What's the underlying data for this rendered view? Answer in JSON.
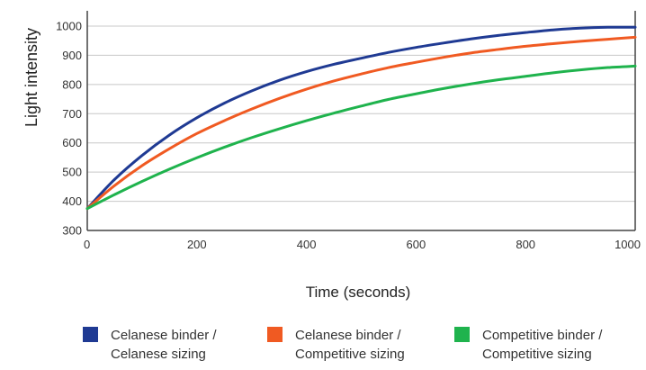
{
  "chart_data": {
    "type": "line",
    "title": "",
    "xlabel": "Time (seconds)",
    "ylabel": "Light intensity",
    "xlim": [
      0,
      1000
    ],
    "ylim": [
      300,
      1000
    ],
    "xticks": [
      0,
      200,
      400,
      600,
      800,
      1000
    ],
    "yticks": [
      300,
      400,
      500,
      600,
      700,
      800,
      900,
      1000
    ],
    "grid": "horizontal",
    "legend_position": "bottom",
    "x": [
      0,
      50,
      100,
      150,
      200,
      250,
      300,
      350,
      400,
      450,
      500,
      550,
      600,
      650,
      700,
      750,
      800,
      850,
      900,
      950,
      1000
    ],
    "series": [
      {
        "name_lines": [
          "Celanese binder /",
          "Celanese sizing"
        ],
        "color": "#1f3a93",
        "values": [
          375,
          475,
          557,
          627,
          686,
          736,
          778,
          814,
          844,
          869,
          890,
          910,
          927,
          942,
          956,
          968,
          978,
          987,
          993,
          996,
          996
        ]
      },
      {
        "name_lines": [
          "Celanese binder /",
          "Competitive sizing"
        ],
        "color": "#f05a22",
        "values": [
          375,
          454,
          522,
          580,
          632,
          676,
          716,
          752,
          784,
          812,
          836,
          858,
          876,
          893,
          908,
          920,
          931,
          940,
          948,
          955,
          962
        ]
      },
      {
        "name_lines": [
          "Competitive binder /",
          "Competitive sizing"
        ],
        "color": "#1fb34d",
        "values": [
          375,
          423,
          468,
          510,
          549,
          585,
          618,
          648,
          676,
          702,
          726,
          749,
          768,
          786,
          802,
          816,
          828,
          840,
          850,
          858,
          863
        ]
      }
    ]
  }
}
